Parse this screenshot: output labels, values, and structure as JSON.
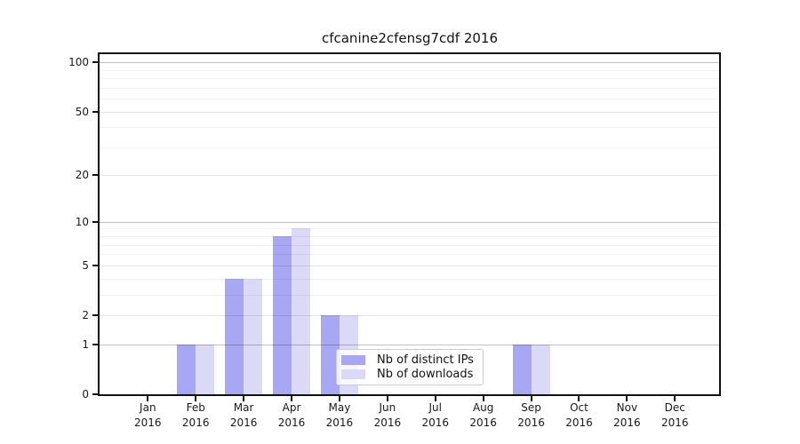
{
  "chart_data": {
    "type": "bar",
    "title": "cfcanine2cfensg7cdf 2016",
    "year_label": "2016",
    "categories": [
      "Jan",
      "Feb",
      "Mar",
      "Apr",
      "May",
      "Jun",
      "Jul",
      "Aug",
      "Sep",
      "Oct",
      "Nov",
      "Dec"
    ],
    "series": [
      {
        "name": "Nb of distinct IPs",
        "color": "#a7a7f4",
        "values": [
          0,
          1,
          4,
          8,
          2,
          0,
          0,
          0,
          1,
          0,
          0,
          0
        ]
      },
      {
        "name": "Nb of downloads",
        "color": "#dadaf7",
        "values": [
          0,
          1,
          4,
          9,
          2,
          0,
          0,
          0,
          1,
          0,
          0,
          0
        ]
      }
    ],
    "xlabel": "",
    "ylabel": "",
    "y_axis": {
      "scale": "symlog",
      "major_ticks": [
        0,
        1,
        2,
        5,
        10,
        20,
        50,
        100
      ],
      "decade_ticks": [
        1,
        10,
        100
      ],
      "minor_ticks": [
        3,
        4,
        6,
        7,
        8,
        9,
        30,
        40,
        60,
        70,
        80,
        90
      ],
      "ylim": [
        0,
        115
      ]
    },
    "grid": true,
    "legend_position": "bottom-center",
    "plot_background": "#ffffff",
    "spine_color": "#111111"
  }
}
